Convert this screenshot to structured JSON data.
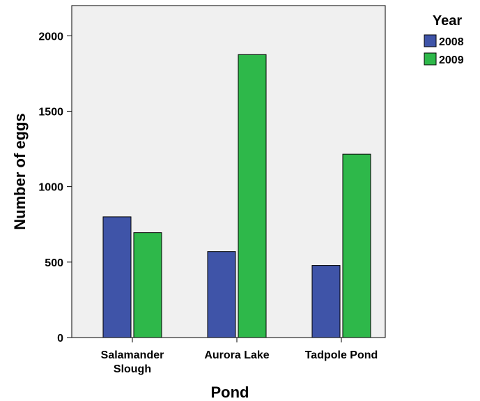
{
  "chart_data": {
    "type": "bar",
    "title": "",
    "xlabel": "Pond",
    "ylabel": "Number of eggs",
    "categories": [
      [
        "Salamander",
        "Slough"
      ],
      [
        "Aurora Lake"
      ],
      [
        "Tadpole Pond"
      ]
    ],
    "series": [
      {
        "name": "2008",
        "values": [
          800,
          570,
          478
        ],
        "color": "#3f54a8"
      },
      {
        "name": "2009",
        "values": [
          695,
          1875,
          1215
        ],
        "color": "#2eb84a"
      }
    ],
    "ylim": [
      0,
      2200
    ],
    "yticks": [
      0,
      500,
      1000,
      1500,
      2000
    ],
    "grid": false,
    "plot_background": "#f0f0f0",
    "legend": {
      "title": "Year",
      "position": "top-right outside"
    }
  }
}
